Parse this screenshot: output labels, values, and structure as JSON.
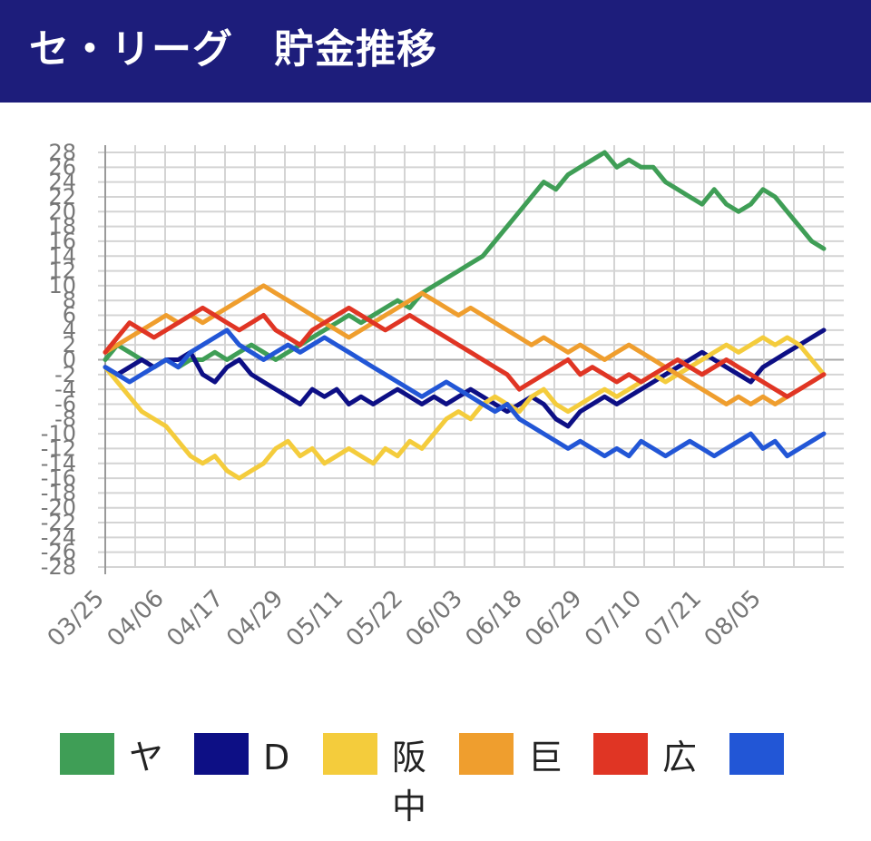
{
  "header": {
    "title": "セ・リーグ　貯金推移",
    "background": "#1d1d7b"
  },
  "chart_data": {
    "type": "line",
    "title": "セ・リーグ　貯金推移",
    "xlabel": "",
    "ylabel": "",
    "ylim": [
      -28,
      28
    ],
    "yticks": [
      "28",
      "26",
      "24",
      "22",
      "20",
      "18",
      "16",
      "14",
      "12",
      "10",
      "8",
      "6",
      "4",
      "2",
      "0",
      "-2",
      "-4",
      "-6",
      "-8",
      "-10",
      "-12",
      "-14",
      "-16",
      "-18",
      "-20",
      "-22",
      "-24",
      "-26",
      "-28"
    ],
    "x_ticks": [
      "03/25",
      "04/06",
      "04/17",
      "04/29",
      "05/11",
      "05/22",
      "06/03",
      "06/18",
      "06/29",
      "07/10",
      "07/21",
      "08/05"
    ],
    "grid": true,
    "legend_position": "bottom",
    "series": [
      {
        "name": "ヤ",
        "color": "#3f9e56",
        "values": [
          0,
          2,
          1,
          0,
          -1,
          0,
          -1,
          0,
          0,
          1,
          0,
          1,
          2,
          1,
          0,
          1,
          2,
          3,
          4,
          5,
          6,
          5,
          6,
          7,
          8,
          7,
          9,
          10,
          11,
          12,
          13,
          14,
          16,
          18,
          20,
          22,
          24,
          23,
          25,
          26,
          27,
          28,
          26,
          27,
          26,
          26,
          24,
          23,
          22,
          21,
          23,
          21,
          20,
          21,
          23,
          22,
          20,
          18,
          16,
          15
        ]
      },
      {
        "name": "D",
        "color": "#0d0f85",
        "values": [
          -1,
          -2,
          -1,
          0,
          -1,
          0,
          0,
          1,
          -2,
          -3,
          -1,
          0,
          -2,
          -3,
          -4,
          -5,
          -6,
          -4,
          -5,
          -4,
          -6,
          -5,
          -6,
          -5,
          -4,
          -5,
          -6,
          -5,
          -6,
          -5,
          -4,
          -5,
          -6,
          -7,
          -6,
          -5,
          -6,
          -8,
          -9,
          -7,
          -6,
          -5,
          -6,
          -5,
          -4,
          -3,
          -2,
          -1,
          0,
          1,
          0,
          -1,
          -2,
          -3,
          -1,
          0,
          1,
          2,
          3,
          4
        ]
      },
      {
        "name": "阪中",
        "color": "#f4cc3c",
        "values": [
          -1,
          -3,
          -5,
          -7,
          -8,
          -9,
          -11,
          -13,
          -14,
          -13,
          -15,
          -16,
          -15,
          -14,
          -12,
          -11,
          -13,
          -12,
          -14,
          -13,
          -12,
          -13,
          -14,
          -12,
          -13,
          -11,
          -12,
          -10,
          -8,
          -7,
          -8,
          -6,
          -5,
          -6,
          -7,
          -5,
          -4,
          -6,
          -7,
          -6,
          -5,
          -4,
          -5,
          -4,
          -3,
          -2,
          -3,
          -2,
          -1,
          0,
          1,
          2,
          1,
          2,
          3,
          2,
          3,
          2,
          0,
          -2
        ]
      },
      {
        "name": "巨",
        "color": "#ef9e2e",
        "values": [
          1,
          2,
          3,
          4,
          5,
          6,
          5,
          6,
          5,
          6,
          7,
          8,
          9,
          10,
          9,
          8,
          7,
          6,
          5,
          4,
          3,
          4,
          5,
          6,
          7,
          8,
          9,
          8,
          7,
          6,
          7,
          6,
          5,
          4,
          3,
          2,
          3,
          2,
          1,
          2,
          1,
          0,
          1,
          2,
          1,
          0,
          -1,
          -2,
          -3,
          -4,
          -5,
          -6,
          -5,
          -6,
          -5,
          -6,
          -5,
          -4,
          -3,
          -2
        ]
      },
      {
        "name": "広",
        "color": "#e03524",
        "values": [
          1,
          3,
          5,
          4,
          3,
          4,
          5,
          6,
          7,
          6,
          5,
          4,
          5,
          6,
          4,
          3,
          2,
          4,
          5,
          6,
          7,
          6,
          5,
          4,
          5,
          6,
          5,
          4,
          3,
          2,
          1,
          0,
          -1,
          -2,
          -4,
          -3,
          -2,
          -1,
          0,
          -2,
          -1,
          -2,
          -3,
          -2,
          -3,
          -2,
          -1,
          0,
          -1,
          -2,
          -1,
          0,
          -1,
          -2,
          -3,
          -4,
          -5,
          -4,
          -3,
          -2
        ]
      },
      {
        "name": "",
        "color": "#2256d6",
        "values": [
          -1,
          -2,
          -3,
          -2,
          -1,
          0,
          -1,
          1,
          2,
          3,
          4,
          2,
          1,
          0,
          1,
          2,
          1,
          2,
          3,
          2,
          1,
          0,
          -1,
          -2,
          -3,
          -4,
          -5,
          -4,
          -3,
          -4,
          -5,
          -6,
          -7,
          -6,
          -8,
          -9,
          -10,
          -11,
          -12,
          -11,
          -12,
          -13,
          -12,
          -13,
          -11,
          -12,
          -13,
          -12,
          -11,
          -12,
          -13,
          -12,
          -11,
          -10,
          -12,
          -11,
          -13,
          -12,
          -11,
          -10
        ]
      }
    ]
  }
}
